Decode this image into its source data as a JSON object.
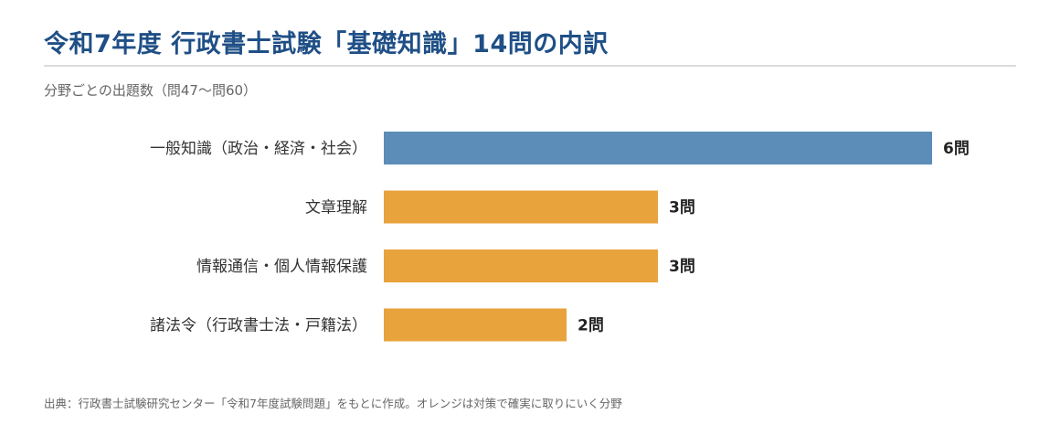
{
  "title": "令和7年度 行政書士試験「基礎知識」14問の内訳",
  "subtitle": "分野ごとの出題数（問47〜問60）",
  "footnote": "出典：行政書士試験研究センター「令和7年度試験問題」をもとに作成。オレンジは対策で確実に取りにいく分野",
  "colors": {
    "highlight": "#e8a33d",
    "primary": "#5b8db8",
    "title": "#1f4f86"
  },
  "chart_data": {
    "type": "bar",
    "orientation": "horizontal",
    "categories": [
      "一般知識（政治・経済・社会）",
      "文章理解",
      "情報通信・個人情報保護",
      "諸法令（行政書士法・戸籍法）"
    ],
    "values": [
      6,
      3,
      3,
      2
    ],
    "data_labels": [
      "6問",
      "3問",
      "3問",
      "2問"
    ],
    "bar_colors": [
      "#5b8db8",
      "#e8a33d",
      "#e8a33d",
      "#e8a33d"
    ],
    "xlim": [
      0,
      6
    ],
    "grid": false,
    "legend": "none"
  }
}
